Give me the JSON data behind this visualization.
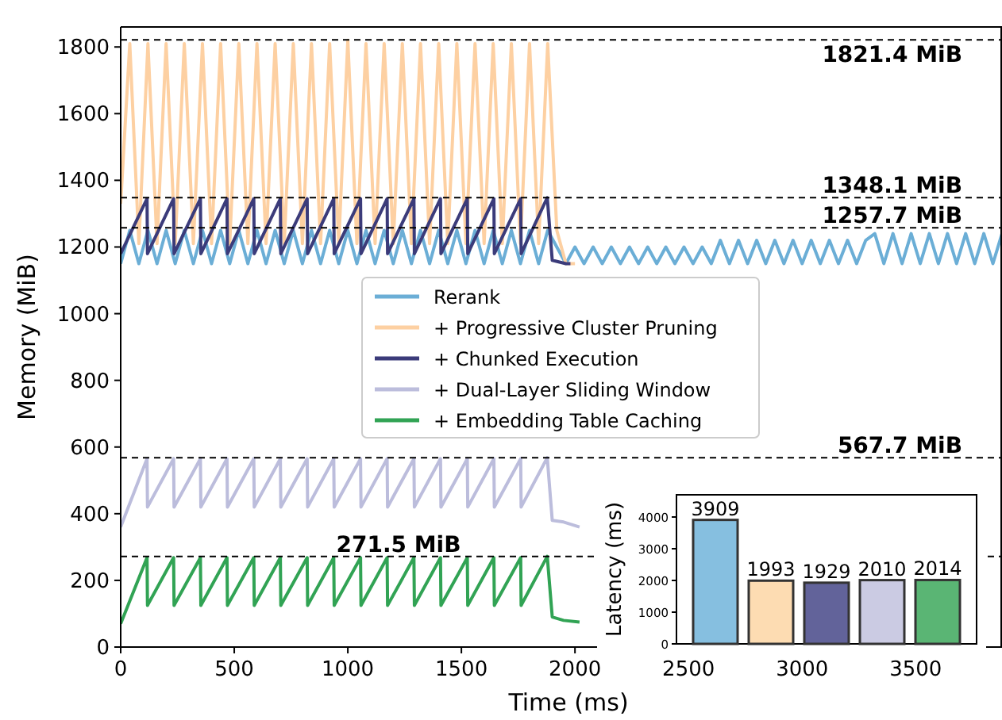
{
  "chart_data": [
    {
      "type": "line",
      "xlabel": "Time (ms)",
      "ylabel": "Memory (MiB)",
      "xlim": [
        0,
        3880
      ],
      "ylim": [
        0,
        1860
      ],
      "xticks": [
        0,
        500,
        1000,
        1500,
        2000,
        2500,
        3000,
        3500
      ],
      "yticks": [
        0,
        200,
        400,
        600,
        800,
        1000,
        1200,
        1400,
        1600,
        1800
      ],
      "legend": "center",
      "grid": false,
      "line_style": "solid",
      "marker": "none",
      "series": [
        {
          "name": "Rerank",
          "color": "#6baed6",
          "x": [
            0,
            40,
            80,
            120,
            160,
            200,
            240,
            280,
            320,
            360,
            400,
            440,
            480,
            520,
            560,
            600,
            640,
            680,
            720,
            760,
            800,
            840,
            880,
            920,
            960,
            1000,
            1040,
            1080,
            1120,
            1160,
            1200,
            1240,
            1280,
            1320,
            1360,
            1400,
            1440,
            1480,
            1520,
            1560,
            1600,
            1640,
            1680,
            1720,
            1760,
            1800,
            1840,
            1880,
            1920,
            1960,
            2000,
            2040,
            2080,
            2120,
            2160,
            2200,
            2240,
            2280,
            2320,
            2360,
            2400,
            2440,
            2480,
            2520,
            2560,
            2600,
            2640,
            2680,
            2720,
            2760,
            2800,
            2840,
            2880,
            2920,
            2960,
            3000,
            3040,
            3080,
            3120,
            3160,
            3200,
            3240,
            3280,
            3320,
            3360,
            3400,
            3440,
            3480,
            3520,
            3560,
            3600,
            3640,
            3680,
            3720,
            3760,
            3800,
            3840,
            3880
          ],
          "values": [
            1150,
            1250,
            1150,
            1250,
            1150,
            1250,
            1150,
            1250,
            1150,
            1250,
            1150,
            1250,
            1150,
            1250,
            1150,
            1250,
            1150,
            1250,
            1150,
            1250,
            1150,
            1250,
            1150,
            1250,
            1150,
            1250,
            1150,
            1250,
            1150,
            1250,
            1150,
            1250,
            1150,
            1250,
            1150,
            1250,
            1150,
            1250,
            1150,
            1250,
            1150,
            1250,
            1150,
            1250,
            1150,
            1250,
            1150,
            1250,
            1200,
            1150,
            1200,
            1150,
            1200,
            1150,
            1200,
            1150,
            1200,
            1150,
            1200,
            1150,
            1200,
            1150,
            1200,
            1150,
            1200,
            1150,
            1220,
            1150,
            1220,
            1150,
            1220,
            1150,
            1220,
            1150,
            1220,
            1150,
            1220,
            1150,
            1220,
            1150,
            1220,
            1150,
            1220,
            1240,
            1150,
            1240,
            1150,
            1240,
            1150,
            1240,
            1150,
            1240,
            1150,
            1240,
            1150,
            1240,
            1150,
            1240
          ]
        },
        {
          "name": "+ Progressive Cluster Pruning",
          "color": "#fdd0a2",
          "x": [
            0,
            40,
            80,
            120,
            160,
            200,
            240,
            280,
            320,
            360,
            400,
            440,
            480,
            520,
            560,
            600,
            640,
            680,
            720,
            760,
            800,
            840,
            880,
            920,
            960,
            1000,
            1040,
            1080,
            1120,
            1160,
            1200,
            1240,
            1280,
            1320,
            1360,
            1400,
            1440,
            1480,
            1520,
            1560,
            1600,
            1640,
            1680,
            1720,
            1760,
            1800,
            1840,
            1880,
            1920,
            1960,
            2000
          ],
          "values": [
            1330,
            1810,
            1210,
            1810,
            1210,
            1810,
            1210,
            1810,
            1210,
            1810,
            1210,
            1810,
            1210,
            1810,
            1210,
            1810,
            1210,
            1810,
            1210,
            1810,
            1210,
            1810,
            1210,
            1810,
            1210,
            1820,
            1210,
            1810,
            1210,
            1810,
            1210,
            1810,
            1210,
            1810,
            1210,
            1810,
            1210,
            1810,
            1210,
            1810,
            1210,
            1810,
            1210,
            1810,
            1210,
            1810,
            1210,
            1810,
            1250,
            1150,
            1150
          ]
        },
        {
          "name": "+ Chunked Execution",
          "color": "#3b3b7a",
          "x": [
            0,
            116,
            118,
            233,
            235,
            351,
            353,
            468,
            470,
            586,
            588,
            703,
            705,
            821,
            823,
            938,
            940,
            1056,
            1058,
            1173,
            1175,
            1291,
            1293,
            1408,
            1410,
            1526,
            1528,
            1643,
            1645,
            1761,
            1763,
            1878,
            1900,
            1960,
            1980
          ],
          "values": [
            1180,
            1345,
            1180,
            1345,
            1180,
            1345,
            1180,
            1345,
            1180,
            1345,
            1180,
            1345,
            1180,
            1345,
            1180,
            1345,
            1180,
            1345,
            1180,
            1345,
            1180,
            1345,
            1180,
            1345,
            1180,
            1345,
            1180,
            1345,
            1180,
            1345,
            1180,
            1348,
            1160,
            1150,
            1150
          ]
        },
        {
          "name": "+ Dual-Layer Sliding Window",
          "color": "#bcbddc",
          "x": [
            0,
            116,
            118,
            233,
            235,
            351,
            353,
            468,
            470,
            586,
            588,
            703,
            705,
            821,
            823,
            938,
            940,
            1056,
            1058,
            1173,
            1175,
            1291,
            1293,
            1408,
            1410,
            1526,
            1528,
            1643,
            1645,
            1761,
            1763,
            1878,
            1900,
            1950,
            2020
          ],
          "values": [
            360,
            565,
            420,
            565,
            420,
            565,
            420,
            565,
            420,
            565,
            420,
            565,
            420,
            565,
            420,
            565,
            420,
            565,
            420,
            565,
            420,
            565,
            420,
            565,
            420,
            565,
            420,
            565,
            420,
            565,
            420,
            568,
            380,
            375,
            360
          ]
        },
        {
          "name": "+ Embedding Table Caching",
          "color": "#31a354",
          "x": [
            0,
            116,
            118,
            233,
            235,
            351,
            353,
            468,
            470,
            586,
            588,
            703,
            705,
            821,
            823,
            938,
            940,
            1056,
            1058,
            1173,
            1175,
            1291,
            1293,
            1408,
            1410,
            1526,
            1528,
            1643,
            1645,
            1761,
            1763,
            1878,
            1900,
            1950,
            2020
          ],
          "values": [
            70,
            268,
            125,
            268,
            125,
            268,
            125,
            268,
            125,
            268,
            125,
            268,
            125,
            268,
            125,
            268,
            125,
            268,
            125,
            268,
            125,
            268,
            125,
            268,
            125,
            268,
            125,
            268,
            125,
            268,
            125,
            272,
            90,
            80,
            75
          ]
        }
      ],
      "ref_lines": [
        {
          "axis": "y",
          "value": 1821.4,
          "label": "1821.4 MiB",
          "color": "#000000",
          "line_style": "dashed"
        },
        {
          "axis": "y",
          "value": 1348.1,
          "label": "1348.1 MiB",
          "color": "#000000",
          "line_style": "dashed"
        },
        {
          "axis": "y",
          "value": 1257.7,
          "label": "1257.7 MiB",
          "color": "#000000",
          "line_style": "dashed"
        },
        {
          "axis": "y",
          "value": 567.7,
          "label": "567.7 MiB",
          "color": "#000000",
          "line_style": "dashed"
        },
        {
          "axis": "y",
          "value": 271.5,
          "label": "271.5 MiB",
          "color": "#000000",
          "line_style": "dashed"
        }
      ]
    },
    {
      "type": "bar",
      "ylabel": "Latency (ms)",
      "categories": [
        null,
        null,
        null,
        null,
        null
      ],
      "values": [
        3909,
        1993,
        1929,
        2010,
        2014
      ],
      "colors": [
        "#86bfe0",
        "#fddcb2",
        "#62639a",
        "#cbcbe3",
        "#5ab574"
      ],
      "ylim": [
        0,
        4700
      ],
      "yticks": [
        0,
        1000,
        2000,
        3000,
        4000
      ],
      "data_labels": true
    }
  ]
}
